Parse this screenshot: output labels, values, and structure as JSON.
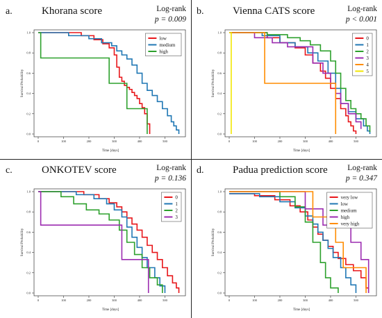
{
  "chart_data": [
    {
      "type": "line",
      "panel_label": "a.",
      "title": "Khorana score",
      "annotation_line1": "Log-rank",
      "annotation_p": "p = 0.009",
      "xlabel": "Time [days]",
      "ylabel": "Survival Probability",
      "xlim": [
        0,
        570
      ],
      "ylim": [
        0,
        1.0
      ],
      "xticks": [
        0,
        100,
        200,
        300,
        400,
        500
      ],
      "yticks": [
        0.0,
        0.2,
        0.4,
        0.6,
        0.8,
        1.0
      ],
      "legend_position": "top-right",
      "series": [
        {
          "name": "low",
          "color": "#e8161a",
          "x": [
            0,
            170,
            220,
            255,
            280,
            300,
            310,
            320,
            330,
            340,
            350,
            360,
            370,
            380,
            390,
            400,
            410,
            420,
            430,
            440
          ],
          "y": [
            1.0,
            0.97,
            0.93,
            0.89,
            0.85,
            0.78,
            0.66,
            0.56,
            0.52,
            0.48,
            0.46,
            0.44,
            0.41,
            0.38,
            0.35,
            0.3,
            0.26,
            0.2,
            0.1,
            0.0
          ]
        },
        {
          "name": "medium",
          "color": "#1f77b4",
          "x": [
            0,
            120,
            200,
            250,
            290,
            310,
            330,
            350,
            370,
            390,
            410,
            430,
            450,
            470,
            490,
            510,
            525,
            535,
            545,
            555
          ],
          "y": [
            1.0,
            0.97,
            0.94,
            0.9,
            0.87,
            0.82,
            0.78,
            0.74,
            0.68,
            0.6,
            0.5,
            0.43,
            0.38,
            0.32,
            0.25,
            0.18,
            0.12,
            0.08,
            0.04,
            0.0
          ]
        },
        {
          "name": "high",
          "color": "#2ca02c",
          "x": [
            0,
            10,
            280,
            350,
            430
          ],
          "y": [
            1.0,
            0.75,
            0.5,
            0.25,
            0.0
          ]
        }
      ]
    },
    {
      "type": "line",
      "panel_label": "b.",
      "title": "Vienna CATS score",
      "annotation_line1": "Log-rank",
      "annotation_p": "p < 0.001",
      "xlabel": "Time [days]",
      "ylabel": "Survival Probability",
      "xlim": [
        0,
        570
      ],
      "ylim": [
        0,
        1.0
      ],
      "xticks": [
        0,
        100,
        200,
        300,
        400,
        500
      ],
      "yticks": [
        0.0,
        0.2,
        0.4,
        0.6,
        0.8,
        1.0
      ],
      "legend_position": "top-right",
      "series": [
        {
          "name": "0",
          "color": "#e8161a",
          "x": [
            0,
            150,
            200,
            260,
            300,
            330,
            360,
            380,
            400,
            420,
            440,
            460,
            470,
            480,
            490,
            500
          ],
          "y": [
            1.0,
            0.95,
            0.9,
            0.85,
            0.78,
            0.7,
            0.62,
            0.55,
            0.45,
            0.35,
            0.25,
            0.18,
            0.12,
            0.08,
            0.03,
            0.0
          ]
        },
        {
          "name": "1",
          "color": "#1f77b4",
          "x": [
            0,
            130,
            200,
            260,
            310,
            350,
            390,
            420,
            440,
            470,
            500,
            530,
            545,
            555
          ],
          "y": [
            1.0,
            0.97,
            0.9,
            0.86,
            0.8,
            0.72,
            0.6,
            0.45,
            0.3,
            0.22,
            0.15,
            0.08,
            0.03,
            0.0
          ]
        },
        {
          "name": "2",
          "color": "#2ca02c",
          "x": [
            0,
            150,
            230,
            280,
            320,
            360,
            400,
            420,
            440,
            460,
            480,
            500,
            520,
            540,
            555
          ],
          "y": [
            1.0,
            0.98,
            0.95,
            0.92,
            0.88,
            0.82,
            0.72,
            0.6,
            0.45,
            0.33,
            0.25,
            0.2,
            0.15,
            0.08,
            0.02
          ]
        },
        {
          "name": "3",
          "color": "#9c2bb0",
          "x": [
            0,
            100,
            170,
            230,
            280,
            330,
            370,
            400,
            420,
            440,
            470,
            500,
            520
          ],
          "y": [
            1.0,
            0.95,
            0.9,
            0.86,
            0.86,
            0.7,
            0.6,
            0.5,
            0.4,
            0.3,
            0.2,
            0.12,
            0.05
          ]
        },
        {
          "name": "4",
          "color": "#ff8c00",
          "x": [
            0,
            140,
            420
          ],
          "y": [
            1.0,
            0.5,
            0.0
          ]
        },
        {
          "name": "5",
          "color": "#f2e600",
          "x": [
            0,
            8
          ],
          "y": [
            1.0,
            0.0
          ]
        }
      ]
    },
    {
      "type": "line",
      "panel_label": "c.",
      "title": "ONKOTEV score",
      "annotation_line1": "Log-rank",
      "annotation_p": "p = 0.136",
      "xlabel": "Time [days]",
      "ylabel": "Survival Probability",
      "xlim": [
        0,
        570
      ],
      "ylim": [
        0,
        1.0
      ],
      "xticks": [
        0,
        100,
        200,
        300,
        400,
        500
      ],
      "yticks": [
        0.0,
        0.2,
        0.4,
        0.6,
        0.8,
        1.0
      ],
      "legend_position": "top-right",
      "series": [
        {
          "name": "0",
          "color": "#e8161a",
          "x": [
            0,
            180,
            240,
            280,
            310,
            330,
            350,
            370,
            390,
            410,
            430,
            450,
            470,
            490,
            510,
            530,
            545,
            555
          ],
          "y": [
            1.0,
            0.97,
            0.93,
            0.89,
            0.85,
            0.8,
            0.74,
            0.68,
            0.62,
            0.55,
            0.47,
            0.4,
            0.33,
            0.25,
            0.17,
            0.1,
            0.05,
            0.0
          ]
        },
        {
          "name": "1",
          "color": "#1f77b4",
          "x": [
            0,
            150,
            220,
            270,
            300,
            330,
            350,
            370,
            390,
            410,
            430,
            460,
            480,
            500
          ],
          "y": [
            1.0,
            0.97,
            0.93,
            0.88,
            0.82,
            0.75,
            0.65,
            0.55,
            0.45,
            0.35,
            0.25,
            0.15,
            0.07,
            0.0
          ]
        },
        {
          "name": "2",
          "color": "#2ca02c",
          "x": [
            0,
            90,
            140,
            190,
            240,
            280,
            320,
            350,
            380,
            410,
            440,
            470,
            490
          ],
          "y": [
            1.0,
            0.95,
            0.88,
            0.82,
            0.78,
            0.72,
            0.62,
            0.5,
            0.38,
            0.25,
            0.15,
            0.08,
            0.0
          ]
        },
        {
          "name": "3",
          "color": "#9c2bb0",
          "x": [
            0,
            10,
            330,
            380,
            435
          ],
          "y": [
            1.0,
            0.67,
            0.33,
            0.33,
            0.0
          ]
        }
      ]
    },
    {
      "type": "line",
      "panel_label": "d.",
      "title": "Padua prediction score",
      "annotation_line1": "Log-rank",
      "annotation_p": "p = 0.347",
      "xlabel": "Time [days]",
      "ylabel": "Survival Probability",
      "xlim": [
        0,
        570
      ],
      "ylim": [
        0,
        1.0
      ],
      "xticks": [
        0,
        100,
        200,
        300,
        400,
        500
      ],
      "yticks": [
        0.0,
        0.2,
        0.4,
        0.6,
        0.8,
        1.0
      ],
      "legend_position": "top-right",
      "series": [
        {
          "name": "very low",
          "color": "#e8161a",
          "x": [
            0,
            100,
            180,
            240,
            280,
            310,
            330,
            350,
            370,
            390,
            410,
            430,
            460,
            490,
            520,
            540,
            550
          ],
          "y": [
            0.98,
            0.96,
            0.92,
            0.86,
            0.8,
            0.72,
            0.65,
            0.58,
            0.52,
            0.46,
            0.4,
            0.34,
            0.28,
            0.22,
            0.15,
            0.05,
            0.0
          ]
        },
        {
          "name": "low",
          "color": "#1f77b4",
          "x": [
            0,
            120,
            200,
            260,
            300,
            330,
            350,
            370,
            390,
            410,
            440,
            460,
            480,
            500
          ],
          "y": [
            0.98,
            0.95,
            0.9,
            0.84,
            0.76,
            0.68,
            0.6,
            0.52,
            0.44,
            0.35,
            0.25,
            0.15,
            0.08,
            0.0
          ]
        },
        {
          "name": "medium",
          "color": "#2ca02c",
          "x": [
            0,
            200,
            260,
            300,
            330,
            360,
            380,
            400,
            430
          ],
          "y": [
            1.0,
            0.95,
            0.85,
            0.7,
            0.5,
            0.3,
            0.15,
            0.05,
            0.0
          ]
        },
        {
          "name": "high",
          "color": "#9c2bb0",
          "x": [
            0,
            300,
            370,
            480,
            520,
            550
          ],
          "y": [
            1.0,
            0.83,
            0.67,
            0.5,
            0.33,
            0.0
          ]
        },
        {
          "name": "very high",
          "color": "#ff8c00",
          "x": [
            0,
            330,
            390,
            420,
            450,
            500,
            540
          ],
          "y": [
            1.0,
            0.75,
            0.75,
            0.5,
            0.25,
            0.25,
            0.0
          ]
        }
      ]
    }
  ]
}
